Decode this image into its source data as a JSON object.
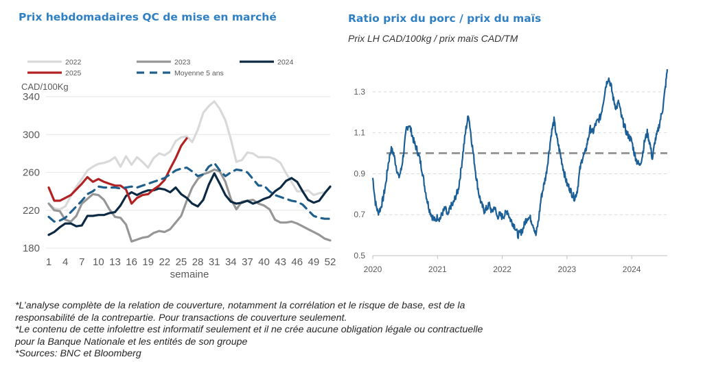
{
  "left_title": "Prix hebdomadaires QC de mise en marché",
  "right_title": "Ratio prix du porc / prix du maïs",
  "right_subtitle": "Prix LH CAD/100kg / prix maïs CAD/TM",
  "footnotes": [
    "*L’analyse complète de la relation de couverture, notamment la corrélation et le risque de base, est de la",
    "responsabilité de la contrepartie. Pour transactions de couverture seulement.",
    "*Le contenu de cette infolettre est informatif seulement et il ne crée aucune obligation légale ou contractuelle",
    "pour la Banque Nationale et les entités de son groupe",
    "*Sources: BNC et Bloomberg"
  ],
  "chart_data": [
    {
      "type": "line",
      "title": "Prix hebdomadaires QC de mise en marché",
      "ylabel": "CAD/100Kg",
      "xlabel": "semaine",
      "ylim": [
        180,
        340
      ],
      "yticks": [
        180,
        220,
        260,
        300,
        340
      ],
      "xlim": [
        1,
        52
      ],
      "xticks": [
        1,
        4,
        7,
        10,
        13,
        16,
        19,
        22,
        25,
        28,
        31,
        34,
        37,
        40,
        43,
        46,
        49,
        52
      ],
      "grid": true,
      "legend_position": "top",
      "series": [
        {
          "name": "2022",
          "color": "#d9d9d9",
          "dash": "solid",
          "x": [
            1,
            2,
            3,
            4,
            5,
            6,
            7,
            8,
            9,
            10,
            11,
            12,
            13,
            14,
            15,
            16,
            17,
            18,
            19,
            20,
            21,
            22,
            23,
            24,
            25,
            26,
            27,
            28,
            29,
            30,
            31,
            32,
            33,
            34,
            35,
            36,
            37,
            38,
            39,
            40,
            41,
            42,
            43,
            44,
            45,
            46,
            47,
            48,
            49,
            50,
            51,
            52
          ],
          "y": [
            227,
            222,
            221,
            224,
            235,
            245,
            253,
            262,
            266,
            269,
            270,
            272,
            276,
            266,
            277,
            268,
            276,
            271,
            265,
            275,
            280,
            278,
            282,
            293,
            297,
            298,
            292,
            305,
            323,
            330,
            335,
            327,
            315,
            295,
            271,
            273,
            281,
            280,
            276,
            276,
            276,
            274,
            270,
            259,
            250,
            240,
            240,
            241,
            236,
            238,
            239,
            244
          ]
        },
        {
          "name": "2023",
          "color": "#969696",
          "dash": "solid",
          "x": [
            1,
            2,
            3,
            4,
            5,
            6,
            7,
            8,
            9,
            10,
            11,
            12,
            13,
            14,
            15,
            16,
            17,
            18,
            19,
            20,
            21,
            22,
            23,
            24,
            25,
            26,
            27,
            28,
            29,
            30,
            31,
            32,
            33,
            34,
            35,
            36,
            37,
            38,
            39,
            40,
            41,
            42,
            43,
            44,
            45,
            46,
            47,
            48,
            49,
            50,
            51,
            52
          ],
          "y": [
            227,
            220,
            219,
            210,
            208,
            214,
            227,
            232,
            237,
            236,
            231,
            221,
            213,
            212,
            205,
            187,
            189,
            191,
            192,
            196,
            198,
            197,
            200,
            207,
            214,
            230,
            244,
            253,
            258,
            260,
            263,
            261,
            250,
            232,
            221,
            229,
            230,
            231,
            227,
            225,
            221,
            210,
            207,
            207,
            208,
            206,
            203,
            200,
            197,
            194,
            190,
            188
          ]
        },
        {
          "name": "2024",
          "color": "#0d2a44",
          "dash": "solid",
          "x": [
            1,
            2,
            3,
            4,
            5,
            6,
            7,
            8,
            9,
            10,
            11,
            12,
            13,
            14,
            15,
            16,
            17,
            18,
            19,
            20,
            21,
            22,
            23,
            24,
            25,
            26,
            27,
            28,
            29,
            30,
            31,
            32,
            33,
            34,
            35,
            36,
            37,
            38,
            39,
            40,
            41,
            42,
            43,
            44,
            45,
            46,
            47,
            48,
            49,
            50,
            51,
            52
          ],
          "y": [
            194,
            197,
            202,
            206,
            206,
            203,
            204,
            214,
            214,
            215,
            215,
            217,
            218,
            225,
            235,
            239,
            236,
            239,
            241,
            241,
            243,
            242,
            239,
            244,
            237,
            233,
            227,
            224,
            231,
            247,
            259,
            248,
            236,
            229,
            227,
            228,
            230,
            227,
            229,
            232,
            234,
            240,
            244,
            251,
            254,
            250,
            240,
            231,
            228,
            230,
            238,
            245
          ]
        },
        {
          "name": "2025",
          "color": "#b22222",
          "dash": "solid",
          "x": [
            1,
            2,
            3,
            4,
            5,
            6,
            7,
            8,
            9,
            10,
            11,
            12,
            13,
            14,
            15,
            16,
            17,
            18,
            19,
            20,
            21,
            22,
            23,
            24,
            25,
            26
          ],
          "y": [
            244,
            230,
            230,
            233,
            236,
            242,
            248,
            255,
            250,
            253,
            250,
            248,
            246,
            246,
            242,
            227,
            233,
            236,
            237,
            242,
            246,
            252,
            264,
            275,
            288,
            296
          ]
        },
        {
          "name": "Moyenne 5 ans",
          "color": "#1f5f8b",
          "dash": "dashed",
          "x": [
            1,
            2,
            3,
            4,
            5,
            6,
            7,
            8,
            9,
            10,
            11,
            12,
            13,
            14,
            15,
            16,
            17,
            18,
            19,
            20,
            21,
            22,
            23,
            24,
            25,
            26,
            27,
            28,
            29,
            30,
            31,
            32,
            33,
            34,
            35,
            36,
            37,
            38,
            39,
            40,
            41,
            42,
            43,
            44,
            45,
            46,
            47,
            48,
            49,
            50,
            51,
            52
          ],
          "y": [
            213,
            208,
            209,
            212,
            218,
            224,
            230,
            237,
            240,
            245,
            244,
            244,
            244,
            243,
            244,
            245,
            244,
            246,
            248,
            250,
            252,
            254,
            258,
            262,
            264,
            265,
            261,
            256,
            258,
            266,
            270,
            262,
            256,
            260,
            263,
            262,
            260,
            253,
            246,
            246,
            240,
            236,
            234,
            232,
            230,
            229,
            226,
            220,
            214,
            212,
            211,
            211
          ]
        }
      ]
    },
    {
      "type": "line",
      "title": "Ratio prix du porc / prix du maïs",
      "subtitle": "Prix LH CAD/100kg / prix maïs CAD/TM",
      "ylim": [
        0.5,
        1.4
      ],
      "yticks": [
        0.5,
        0.7,
        0.9,
        1.1,
        1.3
      ],
      "xticks": [
        "2020",
        "2021",
        "2022",
        "2023",
        "2024"
      ],
      "xlim": [
        2020.0,
        2024.55
      ],
      "grid": true,
      "reference_line": {
        "y": 1.0,
        "style": "dashed",
        "color": "#999999"
      },
      "series": [
        {
          "name": "",
          "color": "#1b5f96",
          "x": [
            2020.0,
            2020.04,
            2020.08,
            2020.12,
            2020.16,
            2020.2,
            2020.24,
            2020.28,
            2020.32,
            2020.36,
            2020.4,
            2020.44,
            2020.48,
            2020.52,
            2020.56,
            2020.6,
            2020.64,
            2020.68,
            2020.72,
            2020.76,
            2020.8,
            2020.84,
            2020.88,
            2020.92,
            2020.96,
            2021.0,
            2021.04,
            2021.08,
            2021.12,
            2021.16,
            2021.2,
            2021.24,
            2021.28,
            2021.32,
            2021.36,
            2021.4,
            2021.44,
            2021.48,
            2021.52,
            2021.56,
            2021.6,
            2021.64,
            2021.68,
            2021.72,
            2021.76,
            2021.8,
            2021.84,
            2021.88,
            2021.92,
            2021.96,
            2022.0,
            2022.04,
            2022.08,
            2022.12,
            2022.16,
            2022.2,
            2022.24,
            2022.28,
            2022.32,
            2022.36,
            2022.4,
            2022.44,
            2022.48,
            2022.52,
            2022.56,
            2022.6,
            2022.64,
            2022.68,
            2022.72,
            2022.76,
            2022.8,
            2022.84,
            2022.88,
            2022.92,
            2022.96,
            2023.0,
            2023.04,
            2023.08,
            2023.12,
            2023.16,
            2023.2,
            2023.24,
            2023.28,
            2023.32,
            2023.36,
            2023.4,
            2023.44,
            2023.48,
            2023.52,
            2023.56,
            2023.6,
            2023.64,
            2023.68,
            2023.72,
            2023.76,
            2023.8,
            2023.84,
            2023.88,
            2023.92,
            2023.96,
            2024.0,
            2024.04,
            2024.08,
            2024.12,
            2024.16,
            2024.2,
            2024.24,
            2024.28,
            2024.32,
            2024.36,
            2024.4,
            2024.44,
            2024.48,
            2024.52,
            2024.55
          ],
          "y": [
            0.88,
            0.76,
            0.71,
            0.73,
            0.78,
            0.85,
            0.95,
            1.02,
            1.0,
            0.94,
            0.88,
            0.92,
            1.01,
            1.12,
            1.14,
            1.1,
            1.05,
            1.02,
            0.98,
            0.92,
            0.84,
            0.77,
            0.72,
            0.69,
            0.67,
            0.69,
            0.68,
            0.71,
            0.73,
            0.69,
            0.74,
            0.75,
            0.79,
            0.82,
            0.91,
            1.02,
            1.12,
            1.19,
            1.08,
            0.98,
            0.88,
            0.8,
            0.75,
            0.72,
            0.73,
            0.75,
            0.71,
            0.74,
            0.69,
            0.7,
            0.69,
            0.7,
            0.72,
            0.68,
            0.66,
            0.64,
            0.6,
            0.61,
            0.63,
            0.67,
            0.69,
            0.68,
            0.65,
            0.6,
            0.67,
            0.78,
            0.84,
            0.9,
            1.0,
            1.1,
            1.16,
            1.08,
            1.02,
            0.96,
            0.9,
            0.85,
            0.83,
            0.8,
            0.78,
            0.82,
            0.92,
            0.98,
            1.0,
            1.06,
            1.12,
            1.1,
            1.14,
            1.16,
            1.18,
            1.25,
            1.33,
            1.37,
            1.33,
            1.26,
            1.22,
            1.25,
            1.18,
            1.14,
            1.1,
            1.08,
            1.06,
            1.0,
            0.96,
            0.94,
            0.98,
            1.06,
            1.1,
            1.05,
            0.97,
            1.06,
            1.1,
            1.16,
            1.22,
            1.32,
            1.41
          ]
        }
      ]
    }
  ]
}
